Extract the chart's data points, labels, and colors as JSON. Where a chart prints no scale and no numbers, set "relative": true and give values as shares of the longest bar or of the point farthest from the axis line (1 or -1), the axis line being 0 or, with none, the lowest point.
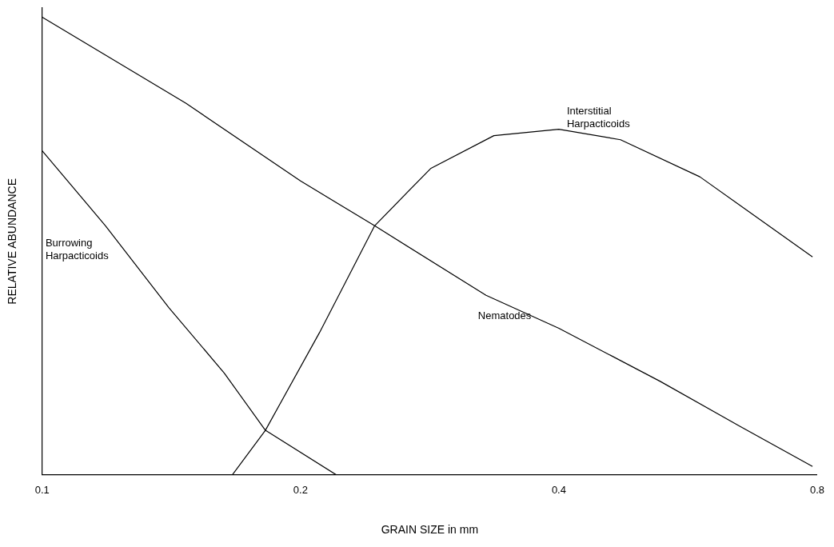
{
  "chart_data": {
    "type": "line",
    "xlabel": "GRAIN SIZE in mm",
    "ylabel": "RELATIVE ABUNDANCE",
    "relative": true,
    "log": "x",
    "xlim": [
      0.1,
      0.8
    ],
    "xticks": [
      0.1,
      0.2,
      0.4,
      0.8
    ],
    "grid": false,
    "legend": false,
    "marker": "none",
    "line_style": "solid",
    "series": [
      {
        "name": "Nematodes",
        "color": "#000000",
        "x": [
          0.1,
          0.147,
          0.2,
          0.244,
          0.329,
          0.4,
          0.525,
          0.65,
          0.79
        ],
        "values": [
          1.0,
          0.812,
          0.642,
          0.544,
          0.392,
          0.32,
          0.204,
          0.106,
          0.018
        ]
      },
      {
        "name": "Burrowing\nHarpacticoids",
        "color": "#000000",
        "x": [
          0.1,
          0.1185,
          0.1405,
          0.163,
          0.182,
          0.22
        ],
        "values": [
          0.708,
          0.544,
          0.365,
          0.222,
          0.097,
          0
        ]
      },
      {
        "name": "Interstitial\nHarpacticoids",
        "color": "#000000",
        "x": [
          0.1666,
          0.182,
          0.2105,
          0.244,
          0.2835,
          0.336,
          0.4,
          0.472,
          0.584,
          0.79
        ],
        "values": [
          0,
          0.097,
          0.311,
          0.544,
          0.669,
          0.741,
          0.755,
          0.732,
          0.651,
          0.476
        ]
      }
    ]
  }
}
